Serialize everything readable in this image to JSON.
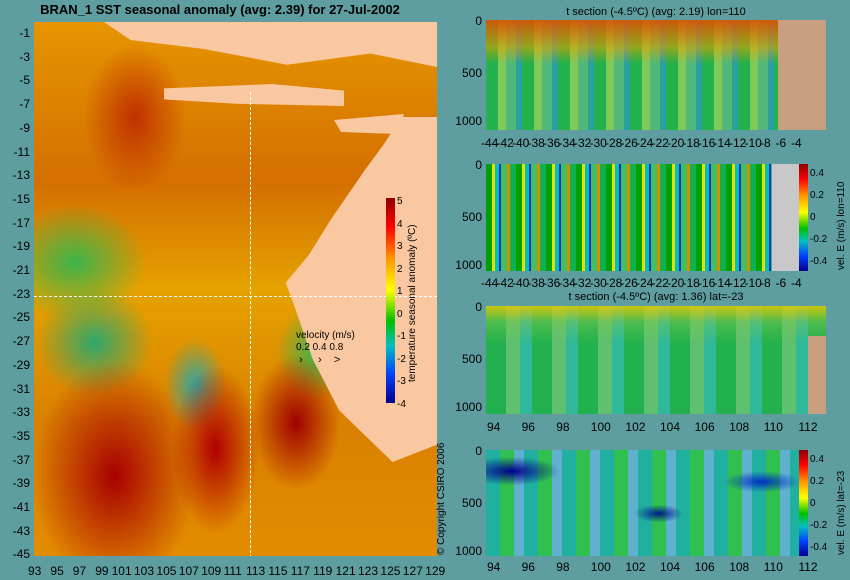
{
  "chart_data": [
    {
      "type": "heatmap",
      "title": "BRAN_1 SST seasonal anomaly (avg: 2.39) for 27-Jul-2002",
      "x_ticks": [
        "93",
        "95",
        "97",
        "99",
        "101",
        "103",
        "105",
        "107",
        "109",
        "111",
        "113",
        "115",
        "117",
        "119",
        "121",
        "123",
        "125",
        "127",
        "129"
      ],
      "y_ticks": [
        "-1",
        "-3",
        "-5",
        "-7",
        "-9",
        "-11",
        "-13",
        "-15",
        "-17",
        "-19",
        "-21",
        "-23",
        "-25",
        "-27",
        "-29",
        "-31",
        "-33",
        "-35",
        "-37",
        "-39",
        "-41",
        "-43",
        "-45"
      ],
      "colorbar_label": "temperature seasonal anomaly (ºC)",
      "colorbar_ticks": [
        "5",
        "4",
        "3",
        "2",
        "1",
        "0",
        "-1",
        "-2",
        "-3",
        "-4"
      ],
      "velocity_legend": {
        "title": "velocity (m/s)",
        "values": "0.2 0.4 0.8"
      }
    },
    {
      "type": "heatmap",
      "title": "t section (-4.5ºC) (avg: 2.19) lon=110",
      "x_ticks": [
        "-44",
        "-42",
        "-40",
        "-38",
        "-36",
        "-34",
        "-32",
        "-30",
        "-28",
        "-26",
        "-24",
        "-22",
        "-20",
        "-18",
        "-16",
        "-14",
        "-12",
        "-10",
        "-8",
        "-6",
        "-4"
      ],
      "y_ticks": [
        "0",
        "500",
        "1000"
      ]
    },
    {
      "type": "heatmap",
      "title": "",
      "x_ticks": [
        "-44",
        "-42",
        "-40",
        "-38",
        "-36",
        "-34",
        "-32",
        "-30",
        "-28",
        "-26",
        "-24",
        "-22",
        "-20",
        "-18",
        "-16",
        "-14",
        "-12",
        "-10",
        "-8",
        "-6",
        "-4"
      ],
      "y_ticks": [
        "0",
        "500",
        "1000"
      ],
      "colorbar_label": "vel. E (m/s) lon=110",
      "colorbar_ticks": [
        "0.4",
        "0.2",
        "0",
        "-0.2",
        "-0.4"
      ]
    },
    {
      "type": "heatmap",
      "title": "t section (-4.5ºC) (avg: 1.36) lat=-23",
      "x_ticks": [
        "94",
        "96",
        "98",
        "100",
        "102",
        "104",
        "106",
        "108",
        "110",
        "112"
      ],
      "y_ticks": [
        "0",
        "500",
        "1000"
      ]
    },
    {
      "type": "heatmap",
      "title": "",
      "x_ticks": [
        "94",
        "96",
        "98",
        "100",
        "102",
        "104",
        "106",
        "108",
        "110",
        "112"
      ],
      "y_ticks": [
        "0",
        "500",
        "1000"
      ],
      "colorbar_label": "vel. E (m/s) lat=-23",
      "colorbar_ticks": [
        "0.4",
        "0.2",
        "0",
        "-0.2",
        "-0.4"
      ]
    }
  ],
  "copyright": "© Copyright CSIRO 2006"
}
